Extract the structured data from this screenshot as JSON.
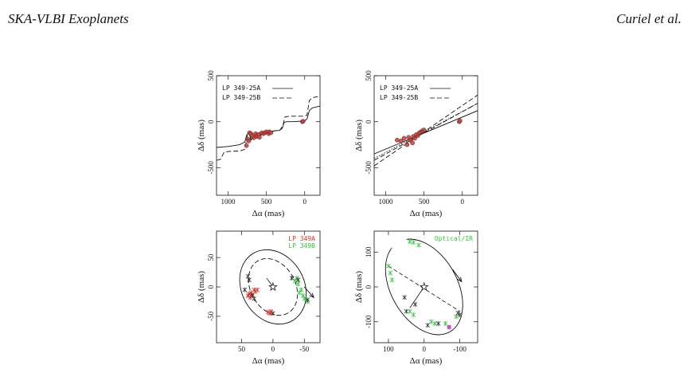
{
  "header": {
    "left": "SKA-VLBI Exoplanets",
    "right": "Curiel et al."
  },
  "chart_data": [
    {
      "type": "line",
      "panel": "top-left",
      "xlabel": "Δα (mas)",
      "ylabel": "Δδ (mas)",
      "xlim": [
        1150,
        -200
      ],
      "ylim": [
        -800,
        500
      ],
      "xticks": [
        1000,
        500,
        0
      ],
      "yticks": [
        500,
        0,
        -500
      ],
      "legend": [
        {
          "label": "LP 349-25A",
          "style": "solid"
        },
        {
          "label": "LP 349-25B",
          "style": "dashed"
        }
      ],
      "series": [
        {
          "name": "LP 349-25A",
          "style": "solid",
          "points": [
            [
              1150,
              -280
            ],
            [
              1000,
              -270
            ],
            [
              850,
              -250
            ],
            [
              780,
              -220
            ],
            [
              760,
              -150
            ],
            [
              740,
              -130
            ],
            [
              720,
              -140
            ],
            [
              700,
              -200
            ],
            [
              680,
              -170
            ],
            [
              660,
              -150
            ],
            [
              640,
              -130
            ],
            [
              600,
              -125
            ],
            [
              560,
              -140
            ],
            [
              530,
              -130
            ],
            [
              500,
              -120
            ],
            [
              460,
              -115
            ],
            [
              430,
              -110
            ],
            [
              400,
              -100
            ],
            [
              330,
              -95
            ],
            [
              290,
              -70
            ],
            [
              270,
              -10
            ],
            [
              240,
              0
            ],
            [
              150,
              0
            ],
            [
              60,
              5
            ],
            [
              0,
              10
            ],
            [
              -30,
              30
            ],
            [
              -60,
              120
            ],
            [
              -100,
              150
            ],
            [
              -200,
              170
            ]
          ]
        },
        {
          "name": "LP 349-25B",
          "style": "dashed",
          "points": [
            [
              1150,
              -420
            ],
            [
              1100,
              -410
            ],
            [
              1050,
              -330
            ],
            [
              950,
              -320
            ],
            [
              850,
              -320
            ],
            [
              780,
              -300
            ],
            [
              760,
              -200
            ],
            [
              740,
              -120
            ],
            [
              700,
              -120
            ],
            [
              670,
              -140
            ],
            [
              640,
              -160
            ],
            [
              610,
              -180
            ],
            [
              580,
              -160
            ],
            [
              550,
              -120
            ],
            [
              520,
              -115
            ],
            [
              480,
              -110
            ],
            [
              440,
              -105
            ],
            [
              400,
              -100
            ],
            [
              320,
              -90
            ],
            [
              280,
              -30
            ],
            [
              260,
              50
            ],
            [
              200,
              60
            ],
            [
              100,
              60
            ],
            [
              20,
              60
            ],
            [
              -30,
              70
            ],
            [
              -60,
              230
            ],
            [
              -100,
              260
            ],
            [
              -200,
              280
            ]
          ]
        }
      ],
      "observations": [
        [
          760,
          -260
        ],
        [
          740,
          -190
        ],
        [
          730,
          -210
        ],
        [
          720,
          -120
        ],
        [
          700,
          -130
        ],
        [
          680,
          -160
        ],
        [
          665,
          -175
        ],
        [
          640,
          -130
        ],
        [
          630,
          -160
        ],
        [
          600,
          -140
        ],
        [
          590,
          -170
        ],
        [
          560,
          -120
        ],
        [
          540,
          -130
        ],
        [
          520,
          -120
        ],
        [
          500,
          -110
        ],
        [
          470,
          -130
        ],
        [
          460,
          -110
        ],
        [
          440,
          -120
        ],
        [
          30,
          0
        ],
        [
          20,
          5
        ]
      ]
    },
    {
      "type": "line",
      "panel": "top-right",
      "xlabel": "Δα (mas)",
      "ylabel": "Δδ (mas)",
      "xlim": [
        1150,
        -200
      ],
      "ylim": [
        -800,
        500
      ],
      "xticks": [
        1000,
        500,
        0
      ],
      "yticks": [
        500,
        0,
        -500
      ],
      "legend": [
        {
          "label": "LP 349-25A",
          "style": "solid"
        },
        {
          "label": "LP 349-25B",
          "style": "dashed"
        }
      ],
      "series": [
        {
          "name": "LP 349-25A",
          "style": "solid",
          "points": [
            [
              1150,
              -350
            ],
            [
              -200,
              120
            ]
          ]
        },
        {
          "name": "LP 349-25B",
          "style": "dashed",
          "points": [
            [
              1150,
              -480
            ],
            [
              -200,
              290
            ]
          ]
        },
        {
          "name": "",
          "style": "dashed",
          "points": [
            [
              1150,
              -420
            ],
            [
              -200,
              200
            ]
          ]
        },
        {
          "name": "",
          "style": "dotted",
          "points": [
            [
              1150,
              -400
            ],
            [
              -200,
              200
            ]
          ]
        }
      ],
      "observations": [
        [
          850,
          -200
        ],
        [
          800,
          -210
        ],
        [
          760,
          -180
        ],
        [
          720,
          -250
        ],
        [
          700,
          -170
        ],
        [
          680,
          -200
        ],
        [
          650,
          -230
        ],
        [
          640,
          -160
        ],
        [
          620,
          -180
        ],
        [
          600,
          -140
        ],
        [
          580,
          -150
        ],
        [
          560,
          -120
        ],
        [
          540,
          -110
        ],
        [
          520,
          -100
        ],
        [
          500,
          -90
        ],
        [
          40,
          0
        ],
        [
          30,
          10
        ]
      ]
    },
    {
      "type": "scatter",
      "panel": "bottom-left",
      "xlabel": "Δα (mas)",
      "ylabel": "Δδ (mas)",
      "xlim": [
        90,
        -75
      ],
      "ylim": [
        -95,
        95
      ],
      "xticks": [
        50,
        0,
        -50
      ],
      "yticks": [
        50,
        0,
        -50
      ],
      "legend": [
        {
          "label": "LP 349A",
          "color": "#e0322d"
        },
        {
          "label": "LP 349B",
          "color": "#2fc73a"
        }
      ],
      "ellipse_outer": {
        "cx": 0,
        "cy": 0,
        "rx": 62,
        "ry": 28,
        "angle": 60,
        "style": "solid"
      },
      "ellipse_inner": {
        "cx": 0,
        "cy": 0,
        "rx": 48,
        "ry": 20,
        "angle": 60,
        "style": "dashed"
      },
      "star": [
        0,
        0
      ],
      "line_to": [
        10,
        15
      ],
      "arrow": {
        "from": [
          -50,
          0
        ],
        "to": [
          -65,
          -18
        ]
      },
      "series": [
        {
          "name": "LP 349A",
          "color": "#e0322d",
          "points": [
            [
              35,
              -10
            ],
            [
              30,
              -5
            ],
            [
              38,
              -12
            ],
            [
              28,
              -8
            ],
            [
              40,
              -15
            ],
            [
              25,
              -5
            ],
            [
              33,
              -13
            ],
            [
              36,
              -18
            ],
            [
              5,
              -45
            ],
            [
              3,
              -42
            ],
            [
              8,
              -43
            ]
          ]
        },
        {
          "name": "LP 349B",
          "color": "#2fc73a",
          "points": [
            [
              -35,
              10
            ],
            [
              -38,
              15
            ],
            [
              -40,
              5
            ],
            [
              -45,
              -5
            ],
            [
              -42,
              -10
            ],
            [
              -48,
              -15
            ],
            [
              -55,
              -25
            ],
            [
              -50,
              -20
            ]
          ]
        },
        {
          "name": "",
          "color": "#333333",
          "points": [
            [
              40,
              18
            ],
            [
              38,
              12
            ],
            [
              45,
              -5
            ],
            [
              33,
              -15
            ],
            [
              30,
              -20
            ],
            [
              0,
              -45
            ],
            [
              -30,
              15
            ],
            [
              -40,
              12
            ],
            [
              -55,
              -22
            ]
          ]
        }
      ]
    },
    {
      "type": "scatter",
      "panel": "bottom-right",
      "xlabel": "Δα (mas)",
      "ylabel": "Δδ (mas)",
      "xlim": [
        140,
        -150
      ],
      "ylim": [
        -160,
        160
      ],
      "xticks": [
        100,
        0,
        -100
      ],
      "yticks": [
        100,
        0,
        -100
      ],
      "legend": [
        {
          "label": "Optical/IR",
          "color": "#2fc73a"
        }
      ],
      "ellipse_outer": {
        "cx": 0,
        "cy": 0,
        "rx": 145,
        "ry": 50,
        "angle": 60,
        "style": "solid"
      },
      "star": [
        0,
        0
      ],
      "line_to": [
        40,
        -60
      ],
      "chord": {
        "from": [
          100,
          60
        ],
        "to": [
          -100,
          -70
        ]
      },
      "arrow": {
        "from": [
          -80,
          50
        ],
        "to": [
          -105,
          15
        ]
      },
      "magenta_point": [
        -70,
        -115
      ],
      "series": [
        {
          "name": "Optical/IR",
          "color": "#2fc73a",
          "points": [
            [
              40,
              130
            ],
            [
              30,
              128
            ],
            [
              15,
              120
            ],
            [
              100,
              60
            ],
            [
              95,
              40
            ],
            [
              90,
              20
            ],
            [
              40,
              -70
            ],
            [
              30,
              -80
            ],
            [
              -20,
              -100
            ],
            [
              -30,
              -105
            ],
            [
              -90,
              -85
            ],
            [
              -70,
              -115
            ],
            [
              -60,
              -105
            ]
          ]
        },
        {
          "name": "",
          "color": "#333333",
          "points": [
            [
              25,
              -50
            ],
            [
              50,
              -70
            ],
            [
              55,
              -30
            ],
            [
              -10,
              -110
            ],
            [
              -40,
              -105
            ],
            [
              -95,
              -75
            ],
            [
              -100,
              -80
            ]
          ]
        }
      ]
    }
  ]
}
